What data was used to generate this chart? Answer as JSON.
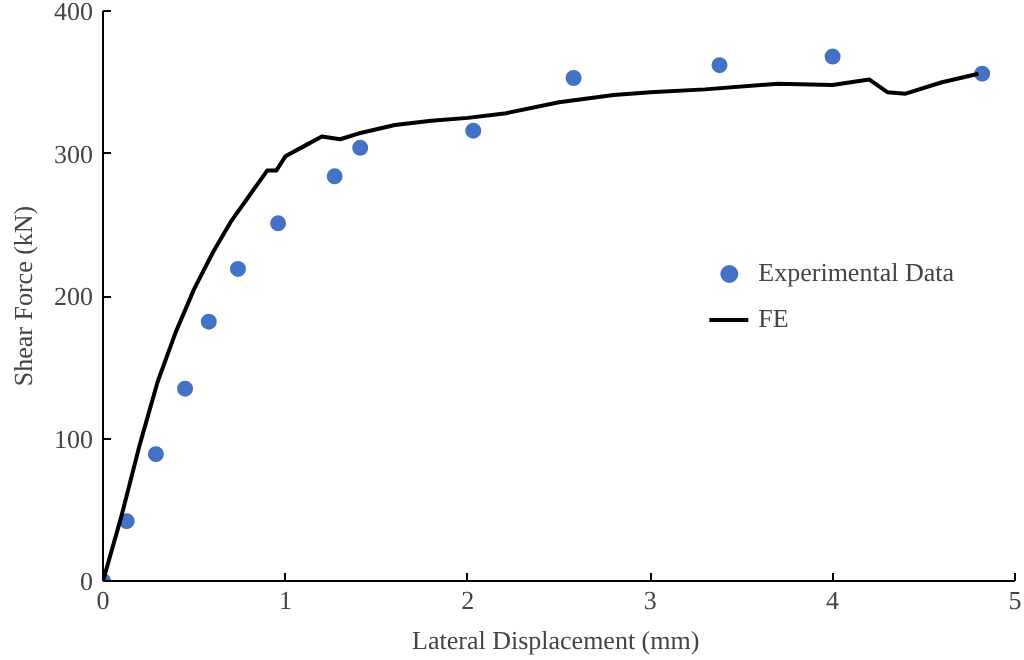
{
  "chart_data": {
    "type": "scatter",
    "xlabel": "Lateral Displacement  (mm)",
    "ylabel": "Shear Force (kN)",
    "xlim": [
      0,
      5
    ],
    "ylim": [
      0,
      400
    ],
    "xticks": [
      0,
      1,
      2,
      3,
      4,
      5
    ],
    "yticks": [
      0,
      100,
      200,
      300,
      400
    ],
    "grid": false,
    "legend": "right",
    "series": [
      {
        "name": "Experimental Data",
        "marker": "circle",
        "color": "#4472c4",
        "x": [
          0,
          0.13,
          0.29,
          0.45,
          0.58,
          0.74,
          0.96,
          1.27,
          1.41,
          2.03,
          2.58,
          3.38,
          4.0,
          4.82
        ],
        "values": [
          0,
          42,
          89,
          135,
          182,
          219,
          251,
          284,
          304,
          316,
          353,
          362,
          368,
          356
        ]
      },
      {
        "name": "FE",
        "type": "line",
        "marker": "none",
        "color": "#000000",
        "x": [
          0,
          0.1,
          0.2,
          0.3,
          0.4,
          0.5,
          0.6,
          0.7,
          0.8,
          0.9,
          0.95,
          1.0,
          1.1,
          1.2,
          1.3,
          1.4,
          1.6,
          1.8,
          2.0,
          2.2,
          2.5,
          2.8,
          3.0,
          3.3,
          3.7,
          4.0,
          4.2,
          4.3,
          4.4,
          4.6,
          4.8
        ],
        "values": [
          0,
          45,
          95,
          140,
          175,
          205,
          230,
          252,
          270,
          288,
          288,
          298,
          305,
          312,
          310,
          314,
          320,
          323,
          325,
          328,
          336,
          341,
          343,
          345,
          349,
          348,
          352,
          343,
          342,
          350,
          356
        ]
      }
    ]
  }
}
